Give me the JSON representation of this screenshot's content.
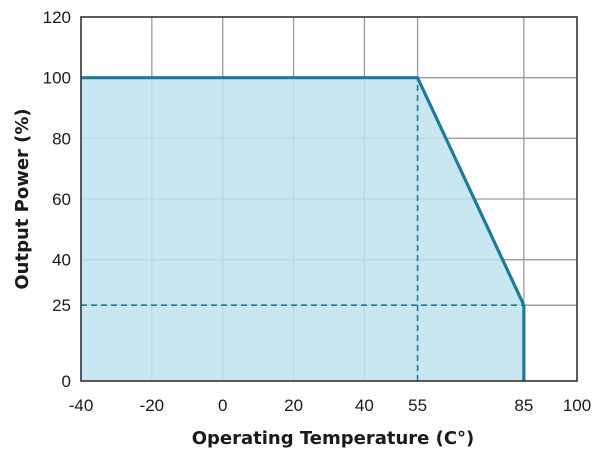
{
  "chart_data": {
    "type": "area",
    "title": "",
    "xlabel": "Operating Temperature (C°)",
    "ylabel": "Output Power (%)",
    "xlim": [
      -40,
      100
    ],
    "ylim": [
      0,
      120
    ],
    "grid": true,
    "x_ticks": [
      -40,
      -20,
      0,
      20,
      40,
      55,
      85,
      100
    ],
    "y_ticks": [
      0,
      25,
      40,
      60,
      80,
      100,
      120
    ],
    "series": [
      {
        "x": [
          -40,
          55,
          85,
          85
        ],
        "y": [
          100,
          100,
          25,
          0
        ]
      }
    ],
    "reference_lines": [
      {
        "type": "vertical",
        "x": 55,
        "y_from": 0,
        "y_to": 100,
        "style": "dashed"
      },
      {
        "type": "horizontal",
        "y": 25,
        "x_from": -40,
        "x_to": 85,
        "style": "dashed"
      }
    ],
    "colors": {
      "line": "#1d7a9a",
      "fill": "#bfe3ee",
      "grid": "#9a9a9a",
      "frame": "#333333"
    }
  }
}
